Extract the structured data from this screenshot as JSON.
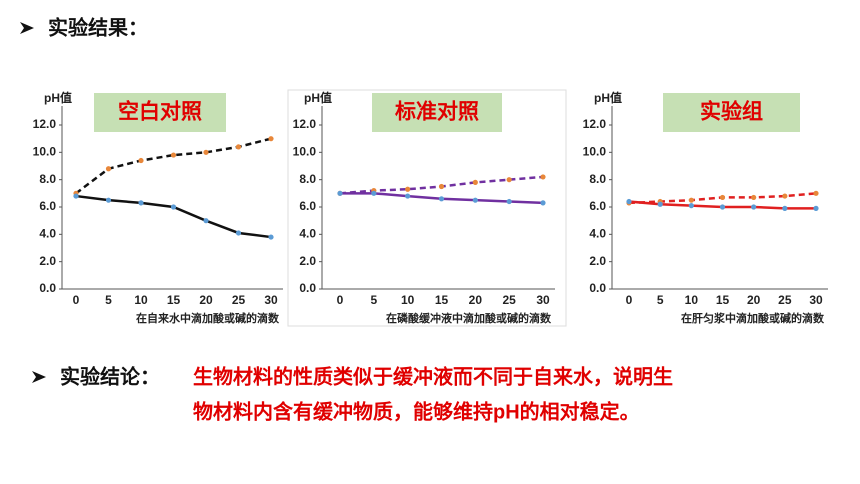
{
  "heading": "实验结果：",
  "conclusion": {
    "label": "实验结论：",
    "lines": [
      "生物材料的性质类似于缓冲液而不同于自来水，说明生",
      "物材料内含有缓冲物质，能够维持pH的相对稳定。"
    ]
  },
  "chart_data": [
    {
      "type": "line",
      "title": "空白对照",
      "y_label": "pH值",
      "x_label": "在自来水中滴加酸或碱的滴数",
      "categories": [
        "0",
        "5",
        "10",
        "15",
        "20",
        "25",
        "30"
      ],
      "ylim": [
        0,
        12
      ],
      "yticks": [
        {
          "value": 0,
          "label": "0.0"
        },
        {
          "value": 2,
          "label": "2.0"
        },
        {
          "value": 4,
          "label": "4.0"
        },
        {
          "value": 6,
          "label": "6.0"
        },
        {
          "value": 8,
          "label": "8.0"
        },
        {
          "value": 10,
          "label": "10.0"
        },
        {
          "value": 12,
          "label": "12.0"
        }
      ],
      "series": [
        {
          "color": "#111111",
          "marker_color": "#e8873a",
          "dashed": true,
          "values": [
            7.0,
            8.8,
            9.4,
            9.8,
            10.0,
            10.4,
            11.0
          ]
        },
        {
          "color": "#111111",
          "marker_color": "#5b9bd5",
          "dashed": false,
          "values": [
            6.8,
            6.5,
            6.3,
            6.0,
            5.0,
            4.1,
            3.8
          ]
        }
      ]
    },
    {
      "type": "line",
      "title": "标准对照",
      "y_label": "pH值",
      "x_label": "在磷酸缓冲液中滴加酸或碱的滴数",
      "categories": [
        "0",
        "5",
        "10",
        "15",
        "20",
        "25",
        "30"
      ],
      "ylim": [
        0,
        12
      ],
      "yticks": [
        {
          "value": 0,
          "label": "0.0"
        },
        {
          "value": 2,
          "label": "2.0"
        },
        {
          "value": 4,
          "label": "4.0"
        },
        {
          "value": 6,
          "label": "6.0"
        },
        {
          "value": 8,
          "label": "8.0"
        },
        {
          "value": 10,
          "label": "10.0"
        },
        {
          "value": 12,
          "label": "12.0"
        }
      ],
      "series": [
        {
          "color": "#7030a0",
          "marker_color": "#e8873a",
          "dashed": true,
          "values": [
            7.0,
            7.2,
            7.3,
            7.5,
            7.8,
            8.0,
            8.2
          ]
        },
        {
          "color": "#7030a0",
          "marker_color": "#5b9bd5",
          "dashed": false,
          "values": [
            7.0,
            7.0,
            6.8,
            6.6,
            6.5,
            6.4,
            6.3
          ]
        }
      ]
    },
    {
      "type": "line",
      "title": "实验组",
      "y_label": "pH值",
      "x_label": "在肝匀浆中滴加酸或碱的滴数",
      "categories": [
        "0",
        "5",
        "10",
        "15",
        "20",
        "25",
        "30"
      ],
      "ylim": [
        0,
        12
      ],
      "yticks": [
        {
          "value": 0,
          "label": "0.0"
        },
        {
          "value": 2,
          "label": "2.0"
        },
        {
          "value": 4,
          "label": "4.0"
        },
        {
          "value": 6,
          "label": "6.0"
        },
        {
          "value": 8,
          "label": "8.0"
        },
        {
          "value": 10,
          "label": "10.0"
        },
        {
          "value": 12,
          "label": "12.0"
        }
      ],
      "series": [
        {
          "color": "#e02020",
          "marker_color": "#e8873a",
          "dashed": true,
          "values": [
            6.3,
            6.4,
            6.5,
            6.7,
            6.7,
            6.8,
            7.0
          ]
        },
        {
          "color": "#e02020",
          "marker_color": "#5b9bd5",
          "dashed": false,
          "values": [
            6.4,
            6.2,
            6.1,
            6.0,
            6.0,
            5.9,
            5.9
          ]
        }
      ]
    }
  ]
}
